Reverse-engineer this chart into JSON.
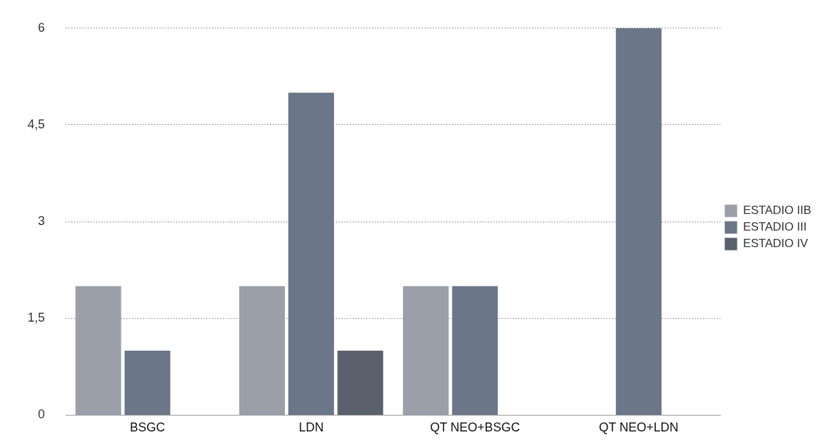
{
  "chart_data": {
    "type": "bar",
    "categories": [
      "BSGC",
      "LDN",
      "QT NEO+BSGC",
      "QT NEO+LDN"
    ],
    "series": [
      {
        "name": "ESTADIO IIB",
        "color": "#9a9fa8",
        "values": [
          2,
          2,
          2,
          null
        ]
      },
      {
        "name": "ESTADIO III",
        "color": "#6b7688",
        "values": [
          1,
          5,
          2,
          6
        ]
      },
      {
        "name": "ESTADIO IV",
        "color": "#5a616c",
        "values": [
          null,
          1,
          null,
          null
        ]
      }
    ],
    "ylim": [
      0,
      6
    ],
    "yticks": [
      0,
      {
        "value": 1.5,
        "label": "1,5"
      },
      3,
      {
        "value": 4.5,
        "label": "4,5"
      },
      6
    ],
    "grid": "y",
    "legend": "right"
  }
}
